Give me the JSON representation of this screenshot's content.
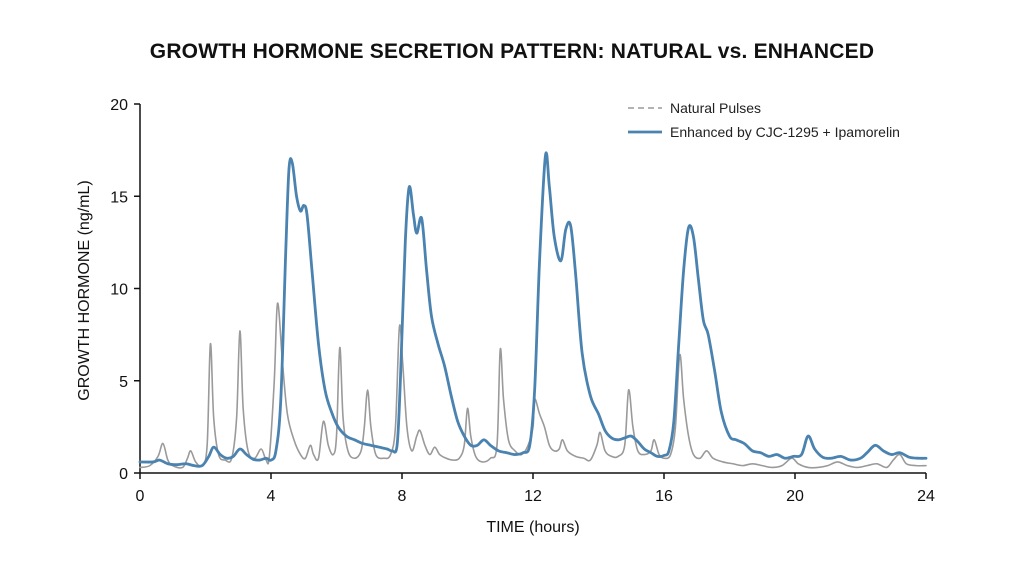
{
  "colors": {
    "natural": "#9a9a9a",
    "enhanced": "#4a82b0",
    "axis": "#111111"
  },
  "chart_data": {
    "type": "line",
    "title": "GROWTH HORMONE SECRETION PATTERN: NATURAL vs. ENHANCED",
    "xlabel": "TIME (hours)",
    "ylabel": "GROWTH HORMONE (ng/mL)",
    "xlim": [
      0,
      24
    ],
    "ylim": [
      0,
      20
    ],
    "xticks": [
      0,
      4,
      8,
      12,
      16,
      20,
      24
    ],
    "yticks": [
      0,
      5,
      10,
      15,
      20
    ],
    "grid": false,
    "legend_position": "top-right",
    "series": [
      {
        "name": "Natural Pulses",
        "style": "gray thin solid line (legend swatch dashed)",
        "points": [
          [
            0,
            0.3
          ],
          [
            0.3,
            0.4
          ],
          [
            0.55,
            0.9
          ],
          [
            0.7,
            1.6
          ],
          [
            0.85,
            0.7
          ],
          [
            1.0,
            0.4
          ],
          [
            1.3,
            0.3
          ],
          [
            1.45,
            0.8
          ],
          [
            1.55,
            1.2
          ],
          [
            1.7,
            0.6
          ],
          [
            1.9,
            0.4
          ],
          [
            2.05,
            1.5
          ],
          [
            2.15,
            7.0
          ],
          [
            2.25,
            3.0
          ],
          [
            2.4,
            1.0
          ],
          [
            2.6,
            0.7
          ],
          [
            2.8,
            0.8
          ],
          [
            2.95,
            3.0
          ],
          [
            3.05,
            7.7
          ],
          [
            3.15,
            3.5
          ],
          [
            3.3,
            1.2
          ],
          [
            3.5,
            0.8
          ],
          [
            3.7,
            1.3
          ],
          [
            3.85,
            0.7
          ],
          [
            3.95,
            0.9
          ],
          [
            4.1,
            5.0
          ],
          [
            4.2,
            9.2
          ],
          [
            4.35,
            6.0
          ],
          [
            4.5,
            3.2
          ],
          [
            4.7,
            1.8
          ],
          [
            4.9,
            1.0
          ],
          [
            5.05,
            0.8
          ],
          [
            5.2,
            1.5
          ],
          [
            5.3,
            1.0
          ],
          [
            5.45,
            0.8
          ],
          [
            5.6,
            2.8
          ],
          [
            5.75,
            1.5
          ],
          [
            5.9,
            1.0
          ],
          [
            6.0,
            2.0
          ],
          [
            6.1,
            6.8
          ],
          [
            6.2,
            3.0
          ],
          [
            6.35,
            1.2
          ],
          [
            6.55,
            0.8
          ],
          [
            6.75,
            1.2
          ],
          [
            6.85,
            2.5
          ],
          [
            6.95,
            4.5
          ],
          [
            7.05,
            2.5
          ],
          [
            7.2,
            1.0
          ],
          [
            7.45,
            0.8
          ],
          [
            7.65,
            1.0
          ],
          [
            7.8,
            2.5
          ],
          [
            7.92,
            7.9
          ],
          [
            8.02,
            6.0
          ],
          [
            8.15,
            2.5
          ],
          [
            8.3,
            1.2
          ],
          [
            8.45,
            2.0
          ],
          [
            8.55,
            2.3
          ],
          [
            8.7,
            1.5
          ],
          [
            8.85,
            1.0
          ],
          [
            9.0,
            1.4
          ],
          [
            9.15,
            1.0
          ],
          [
            9.35,
            0.8
          ],
          [
            9.55,
            0.7
          ],
          [
            9.75,
            0.8
          ],
          [
            9.9,
            1.5
          ],
          [
            10.0,
            3.5
          ],
          [
            10.1,
            2.0
          ],
          [
            10.25,
            0.9
          ],
          [
            10.45,
            0.6
          ],
          [
            10.7,
            0.8
          ],
          [
            10.9,
            1.5
          ],
          [
            11.0,
            6.7
          ],
          [
            11.1,
            4.0
          ],
          [
            11.25,
            1.8
          ],
          [
            11.45,
            1.2
          ],
          [
            11.65,
            1.0
          ],
          [
            11.85,
            1.5
          ],
          [
            12.0,
            2.5
          ],
          [
            12.05,
            4.0
          ],
          [
            12.2,
            3.2
          ],
          [
            12.35,
            2.5
          ],
          [
            12.5,
            1.5
          ],
          [
            12.65,
            1.2
          ],
          [
            12.8,
            1.3
          ],
          [
            12.9,
            1.8
          ],
          [
            13.05,
            1.2
          ],
          [
            13.3,
            0.9
          ],
          [
            13.55,
            0.8
          ],
          [
            13.75,
            0.7
          ],
          [
            13.95,
            1.5
          ],
          [
            14.05,
            2.2
          ],
          [
            14.2,
            1.2
          ],
          [
            14.4,
            0.9
          ],
          [
            14.6,
            0.9
          ],
          [
            14.8,
            1.5
          ],
          [
            14.92,
            4.5
          ],
          [
            15.05,
            2.5
          ],
          [
            15.2,
            1.2
          ],
          [
            15.4,
            1.0
          ],
          [
            15.6,
            1.2
          ],
          [
            15.7,
            1.8
          ],
          [
            15.85,
            1.0
          ],
          [
            16.0,
            0.8
          ],
          [
            16.2,
            1.0
          ],
          [
            16.35,
            2.5
          ],
          [
            16.48,
            6.4
          ],
          [
            16.6,
            4.0
          ],
          [
            16.75,
            2.0
          ],
          [
            16.9,
            1.0
          ],
          [
            17.1,
            0.8
          ],
          [
            17.3,
            1.2
          ],
          [
            17.5,
            0.8
          ],
          [
            17.8,
            0.6
          ],
          [
            18.1,
            0.5
          ],
          [
            18.4,
            0.4
          ],
          [
            18.7,
            0.5
          ],
          [
            19.0,
            0.4
          ],
          [
            19.3,
            0.3
          ],
          [
            19.6,
            0.4
          ],
          [
            19.9,
            0.8
          ],
          [
            20.1,
            0.5
          ],
          [
            20.4,
            0.3
          ],
          [
            20.7,
            0.3
          ],
          [
            21.0,
            0.4
          ],
          [
            21.3,
            0.6
          ],
          [
            21.6,
            0.4
          ],
          [
            21.9,
            0.3
          ],
          [
            22.2,
            0.4
          ],
          [
            22.5,
            0.5
          ],
          [
            22.8,
            0.3
          ],
          [
            23.0,
            0.7
          ],
          [
            23.2,
            1.0
          ],
          [
            23.4,
            0.5
          ],
          [
            23.7,
            0.4
          ],
          [
            24.0,
            0.4
          ]
        ]
      },
      {
        "name": "Enhanced by CJC-1295 + Ipamorelin",
        "style": "steel-blue thick solid line",
        "points": [
          [
            0,
            0.6
          ],
          [
            0.4,
            0.6
          ],
          [
            0.6,
            0.7
          ],
          [
            0.85,
            0.5
          ],
          [
            1.1,
            0.45
          ],
          [
            1.4,
            0.5
          ],
          [
            1.65,
            0.4
          ],
          [
            1.9,
            0.4
          ],
          [
            2.1,
            0.9
          ],
          [
            2.25,
            1.4
          ],
          [
            2.45,
            1.0
          ],
          [
            2.65,
            0.8
          ],
          [
            2.85,
            0.9
          ],
          [
            3.05,
            1.3
          ],
          [
            3.25,
            1.0
          ],
          [
            3.45,
            0.75
          ],
          [
            3.65,
            0.7
          ],
          [
            3.85,
            0.8
          ],
          [
            4.0,
            0.7
          ],
          [
            4.15,
            1.2
          ],
          [
            4.3,
            4.0
          ],
          [
            4.45,
            12.0
          ],
          [
            4.55,
            16.5
          ],
          [
            4.65,
            16.8
          ],
          [
            4.78,
            15.0
          ],
          [
            4.9,
            14.2
          ],
          [
            5.0,
            14.5
          ],
          [
            5.1,
            14.0
          ],
          [
            5.25,
            11.0
          ],
          [
            5.45,
            7.0
          ],
          [
            5.65,
            4.5
          ],
          [
            5.85,
            3.3
          ],
          [
            6.05,
            2.5
          ],
          [
            6.3,
            2.0
          ],
          [
            6.55,
            1.8
          ],
          [
            6.8,
            1.6
          ],
          [
            7.05,
            1.5
          ],
          [
            7.3,
            1.4
          ],
          [
            7.55,
            1.3
          ],
          [
            7.7,
            1.2
          ],
          [
            7.85,
            1.5
          ],
          [
            7.95,
            5.0
          ],
          [
            8.1,
            12.5
          ],
          [
            8.22,
            15.5
          ],
          [
            8.35,
            14.0
          ],
          [
            8.45,
            13.0
          ],
          [
            8.6,
            13.8
          ],
          [
            8.75,
            11.0
          ],
          [
            8.9,
            8.5
          ],
          [
            9.1,
            7.0
          ],
          [
            9.3,
            5.8
          ],
          [
            9.5,
            4.2
          ],
          [
            9.7,
            2.8
          ],
          [
            9.9,
            2.0
          ],
          [
            10.1,
            1.5
          ],
          [
            10.3,
            1.5
          ],
          [
            10.5,
            1.8
          ],
          [
            10.7,
            1.5
          ],
          [
            10.95,
            1.2
          ],
          [
            11.2,
            1.1
          ],
          [
            11.45,
            1.0
          ],
          [
            11.7,
            1.1
          ],
          [
            11.9,
            1.5
          ],
          [
            12.05,
            4.5
          ],
          [
            12.2,
            11.5
          ],
          [
            12.38,
            17.2
          ],
          [
            12.5,
            15.5
          ],
          [
            12.65,
            12.8
          ],
          [
            12.85,
            11.5
          ],
          [
            13.0,
            13.2
          ],
          [
            13.15,
            13.4
          ],
          [
            13.3,
            10.8
          ],
          [
            13.5,
            6.5
          ],
          [
            13.75,
            4.2
          ],
          [
            14.0,
            3.2
          ],
          [
            14.2,
            2.3
          ],
          [
            14.4,
            1.9
          ],
          [
            14.6,
            1.8
          ],
          [
            14.8,
            1.9
          ],
          [
            15.0,
            2.0
          ],
          [
            15.2,
            1.7
          ],
          [
            15.4,
            1.3
          ],
          [
            15.6,
            1.1
          ],
          [
            15.8,
            0.9
          ],
          [
            16.0,
            0.95
          ],
          [
            16.15,
            1.2
          ],
          [
            16.3,
            2.8
          ],
          [
            16.45,
            7.0
          ],
          [
            16.6,
            11.0
          ],
          [
            16.75,
            13.3
          ],
          [
            16.9,
            12.8
          ],
          [
            17.05,
            10.5
          ],
          [
            17.2,
            8.3
          ],
          [
            17.35,
            7.5
          ],
          [
            17.55,
            5.5
          ],
          [
            17.75,
            3.3
          ],
          [
            18.0,
            2.0
          ],
          [
            18.2,
            1.8
          ],
          [
            18.45,
            1.6
          ],
          [
            18.7,
            1.2
          ],
          [
            18.95,
            1.1
          ],
          [
            19.2,
            0.9
          ],
          [
            19.45,
            1.0
          ],
          [
            19.7,
            0.8
          ],
          [
            19.95,
            0.9
          ],
          [
            20.2,
            1.0
          ],
          [
            20.4,
            2.0
          ],
          [
            20.6,
            1.3
          ],
          [
            20.85,
            0.85
          ],
          [
            21.1,
            0.8
          ],
          [
            21.4,
            0.9
          ],
          [
            21.7,
            0.7
          ],
          [
            22.0,
            0.8
          ],
          [
            22.2,
            1.1
          ],
          [
            22.45,
            1.5
          ],
          [
            22.7,
            1.2
          ],
          [
            22.95,
            1.0
          ],
          [
            23.2,
            1.1
          ],
          [
            23.5,
            0.85
          ],
          [
            23.8,
            0.8
          ],
          [
            24.0,
            0.8
          ]
        ]
      }
    ]
  }
}
